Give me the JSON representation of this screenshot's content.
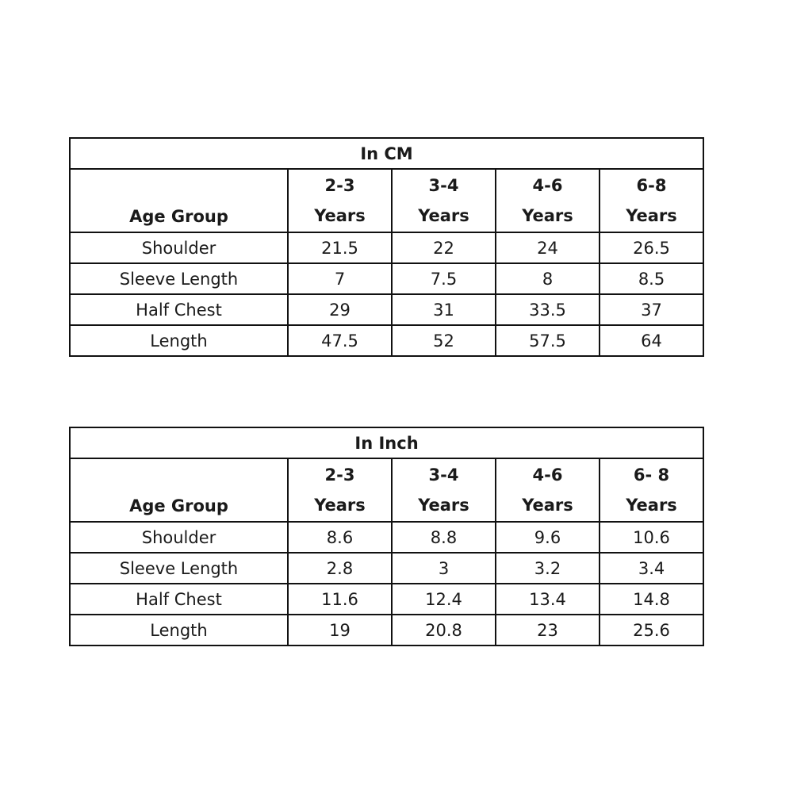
{
  "tables": [
    {
      "title": "In CM",
      "header_label": "Age Group",
      "columns": [
        {
          "top": "2-3",
          "bottom": "Years"
        },
        {
          "top": "3-4",
          "bottom": "Years"
        },
        {
          "top": "4-6",
          "bottom": "Years"
        },
        {
          "top": "6-8",
          "bottom": "Years"
        }
      ],
      "rows": [
        {
          "label": "Shoulder",
          "values": [
            "21.5",
            "22",
            "24",
            "26.5"
          ]
        },
        {
          "label": "Sleeve Length",
          "values": [
            "7",
            "7.5",
            "8",
            "8.5"
          ]
        },
        {
          "label": "Half Chest",
          "values": [
            "29",
            "31",
            "33.5",
            "37"
          ]
        },
        {
          "label": "Length",
          "values": [
            "47.5",
            "52",
            "57.5",
            "64"
          ]
        }
      ]
    },
    {
      "title": "In Inch",
      "header_label": "Age Group",
      "columns": [
        {
          "top": "2-3",
          "bottom": "Years"
        },
        {
          "top": "3-4",
          "bottom": "Years"
        },
        {
          "top": "4-6",
          "bottom": "Years"
        },
        {
          "top": "6- 8",
          "bottom": "Years"
        }
      ],
      "rows": [
        {
          "label": "Shoulder",
          "values": [
            "8.6",
            "8.8",
            "9.6",
            "10.6"
          ]
        },
        {
          "label": "Sleeve Length",
          "values": [
            "2.8",
            "3",
            "3.2",
            "3.4"
          ]
        },
        {
          "label": "Half Chest",
          "values": [
            "11.6",
            "12.4",
            "13.4",
            "14.8"
          ]
        },
        {
          "label": "Length",
          "values": [
            "19",
            "20.8",
            "23",
            "25.6"
          ]
        }
      ]
    }
  ]
}
